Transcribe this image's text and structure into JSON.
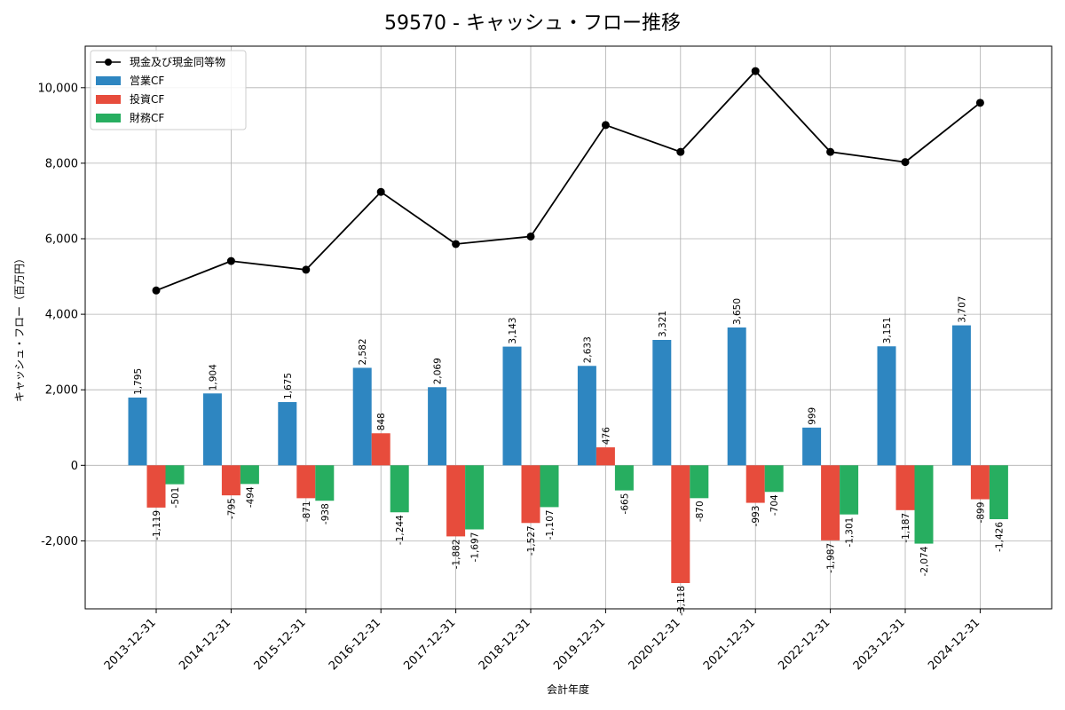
{
  "chart_data": {
    "type": "bar",
    "title": "59570 - キャッシュ・フロー推移",
    "xlabel": "会計年度",
    "ylabel": "キャッシュ・フロー（百万円）",
    "ylim": [
      -3800,
      11100
    ],
    "yticks": [
      -2000,
      0,
      2000,
      4000,
      6000,
      8000,
      10000
    ],
    "ytick_labels": [
      "-2,000",
      "0",
      "2,000",
      "4,000",
      "6,000",
      "8,000",
      "10,000"
    ],
    "grid": true,
    "legend_position": "top-left",
    "categories": [
      "2013-12-31",
      "2014-12-31",
      "2015-12-31",
      "2016-12-31",
      "2017-12-31",
      "2018-12-31",
      "2019-12-31",
      "2020-12-31",
      "2021-12-31",
      "2022-12-31",
      "2023-12-31",
      "2024-12-31"
    ],
    "line_series": {
      "name": "現金及び現金同等物",
      "color": "#000000",
      "values": [
        4630,
        5410,
        5180,
        7240,
        5860,
        6060,
        9010,
        8300,
        10440,
        8300,
        8030,
        9600
      ]
    },
    "series": [
      {
        "name": "営業CF",
        "color": "#2e86c1",
        "values": [
          1795,
          1904,
          1675,
          2582,
          2069,
          3143,
          2633,
          3321,
          3650,
          999,
          3151,
          3707
        ],
        "labels": [
          "1,795",
          "1,904",
          "1,675",
          "2,582",
          "2,069",
          "3,143",
          "2,633",
          "3,321",
          "3,650",
          "999",
          "3,151",
          "3,707"
        ]
      },
      {
        "name": "投資CF",
        "color": "#e74c3c",
        "values": [
          -1119,
          -795,
          -871,
          848,
          -1882,
          -1527,
          476,
          -3118,
          -993,
          -1987,
          -1187,
          -899
        ],
        "labels": [
          "-1,119",
          "-795",
          "-871",
          "848",
          "-1,882",
          "-1,527",
          "476",
          "-3,118",
          "-993",
          "-1,987",
          "-1,187",
          "-899"
        ]
      },
      {
        "name": "財務CF",
        "color": "#27ae60",
        "values": [
          -501,
          -494,
          -938,
          -1244,
          -1697,
          -1107,
          -665,
          -870,
          -704,
          -1301,
          -2074,
          -1426
        ],
        "labels": [
          "-501",
          "-494",
          "-938",
          "-1,244",
          "-1,697",
          "-1,107",
          "-665",
          "-870",
          "-704",
          "-1,301",
          "-2,074",
          "-1,426"
        ]
      }
    ]
  }
}
